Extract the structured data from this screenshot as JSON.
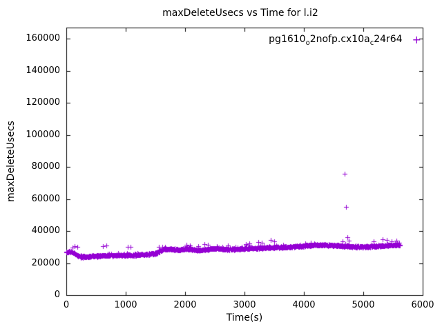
{
  "chart_data": {
    "type": "scatter",
    "title": "maxDeleteUsecs vs Time for l.i2",
    "xlabel": "Time(s)",
    "ylabel": "maxDeleteUsecs",
    "xlim": [
      0,
      6000
    ],
    "ylim": [
      0,
      166000
    ],
    "xticks": [
      0,
      1000,
      2000,
      3000,
      4000,
      5000,
      6000
    ],
    "yticks": [
      0,
      20000,
      40000,
      60000,
      80000,
      100000,
      120000,
      140000,
      160000
    ],
    "grid": false,
    "legend_position": "top-right-inside",
    "marker": "plus",
    "marker_color": "#9400D3",
    "axis_color": "#000000",
    "series": [
      {
        "name": "pg1610_o2nofp.cx10a_c24r64",
        "name_display_parts": [
          {
            "t": "pg1610",
            "sub": false
          },
          {
            "t": "o",
            "sub": true
          },
          {
            "t": "2nofp.cx10a",
            "sub": false
          },
          {
            "t": "c",
            "sub": true
          },
          {
            "t": "24r64",
            "sub": false
          }
        ],
        "x_max_data": 5620,
        "point_count": 1250,
        "band_jitter": 700,
        "band_trend": [
          [
            0,
            26900
          ],
          [
            60,
            27200
          ],
          [
            120,
            26300
          ],
          [
            180,
            24900
          ],
          [
            260,
            23900
          ],
          [
            360,
            24100
          ],
          [
            500,
            24400
          ],
          [
            700,
            24700
          ],
          [
            900,
            24800
          ],
          [
            1100,
            25000
          ],
          [
            1300,
            25300
          ],
          [
            1500,
            25900
          ],
          [
            1580,
            27500
          ],
          [
            1660,
            28900
          ],
          [
            1760,
            28700
          ],
          [
            1860,
            28400
          ],
          [
            1960,
            28600
          ],
          [
            2060,
            28900
          ],
          [
            2160,
            28300
          ],
          [
            2260,
            28100
          ],
          [
            2360,
            28600
          ],
          [
            2460,
            29100
          ],
          [
            2560,
            29200
          ],
          [
            2660,
            28700
          ],
          [
            2760,
            28500
          ],
          [
            2860,
            28700
          ],
          [
            3000,
            29000
          ],
          [
            3150,
            29200
          ],
          [
            3300,
            29500
          ],
          [
            3450,
            29900
          ],
          [
            3600,
            29800
          ],
          [
            3750,
            30000
          ],
          [
            3900,
            30400
          ],
          [
            4050,
            30900
          ],
          [
            4200,
            31200
          ],
          [
            4350,
            31300
          ],
          [
            4500,
            31200
          ],
          [
            4650,
            30700
          ],
          [
            4800,
            30300
          ],
          [
            4950,
            30100
          ],
          [
            5100,
            30300
          ],
          [
            5250,
            30600
          ],
          [
            5400,
            31000
          ],
          [
            5620,
            31400
          ]
        ],
        "outliers": [
          [
            110,
            29600
          ],
          [
            140,
            30600
          ],
          [
            190,
            29900
          ],
          [
            240,
            23100
          ],
          [
            280,
            23300
          ],
          [
            620,
            30600
          ],
          [
            680,
            30900
          ],
          [
            1030,
            29900
          ],
          [
            1080,
            30200
          ],
          [
            1560,
            30200
          ],
          [
            1620,
            29900
          ],
          [
            2020,
            31200
          ],
          [
            2080,
            31000
          ],
          [
            2320,
            31900
          ],
          [
            2380,
            31600
          ],
          [
            2720,
            31000
          ],
          [
            3020,
            32000
          ],
          [
            3080,
            32400
          ],
          [
            3230,
            33100
          ],
          [
            3290,
            32700
          ],
          [
            3440,
            34200
          ],
          [
            3500,
            33700
          ],
          [
            3560,
            30600
          ],
          [
            3650,
            31500
          ],
          [
            4180,
            32200
          ],
          [
            4650,
            33400
          ],
          [
            4690,
            75500
          ],
          [
            4710,
            55200
          ],
          [
            4730,
            36200
          ],
          [
            4760,
            33800
          ],
          [
            5180,
            33400
          ],
          [
            5330,
            34700
          ],
          [
            5400,
            34200
          ],
          [
            5480,
            33600
          ],
          [
            5560,
            33900
          ],
          [
            5600,
            32600
          ]
        ]
      }
    ]
  }
}
